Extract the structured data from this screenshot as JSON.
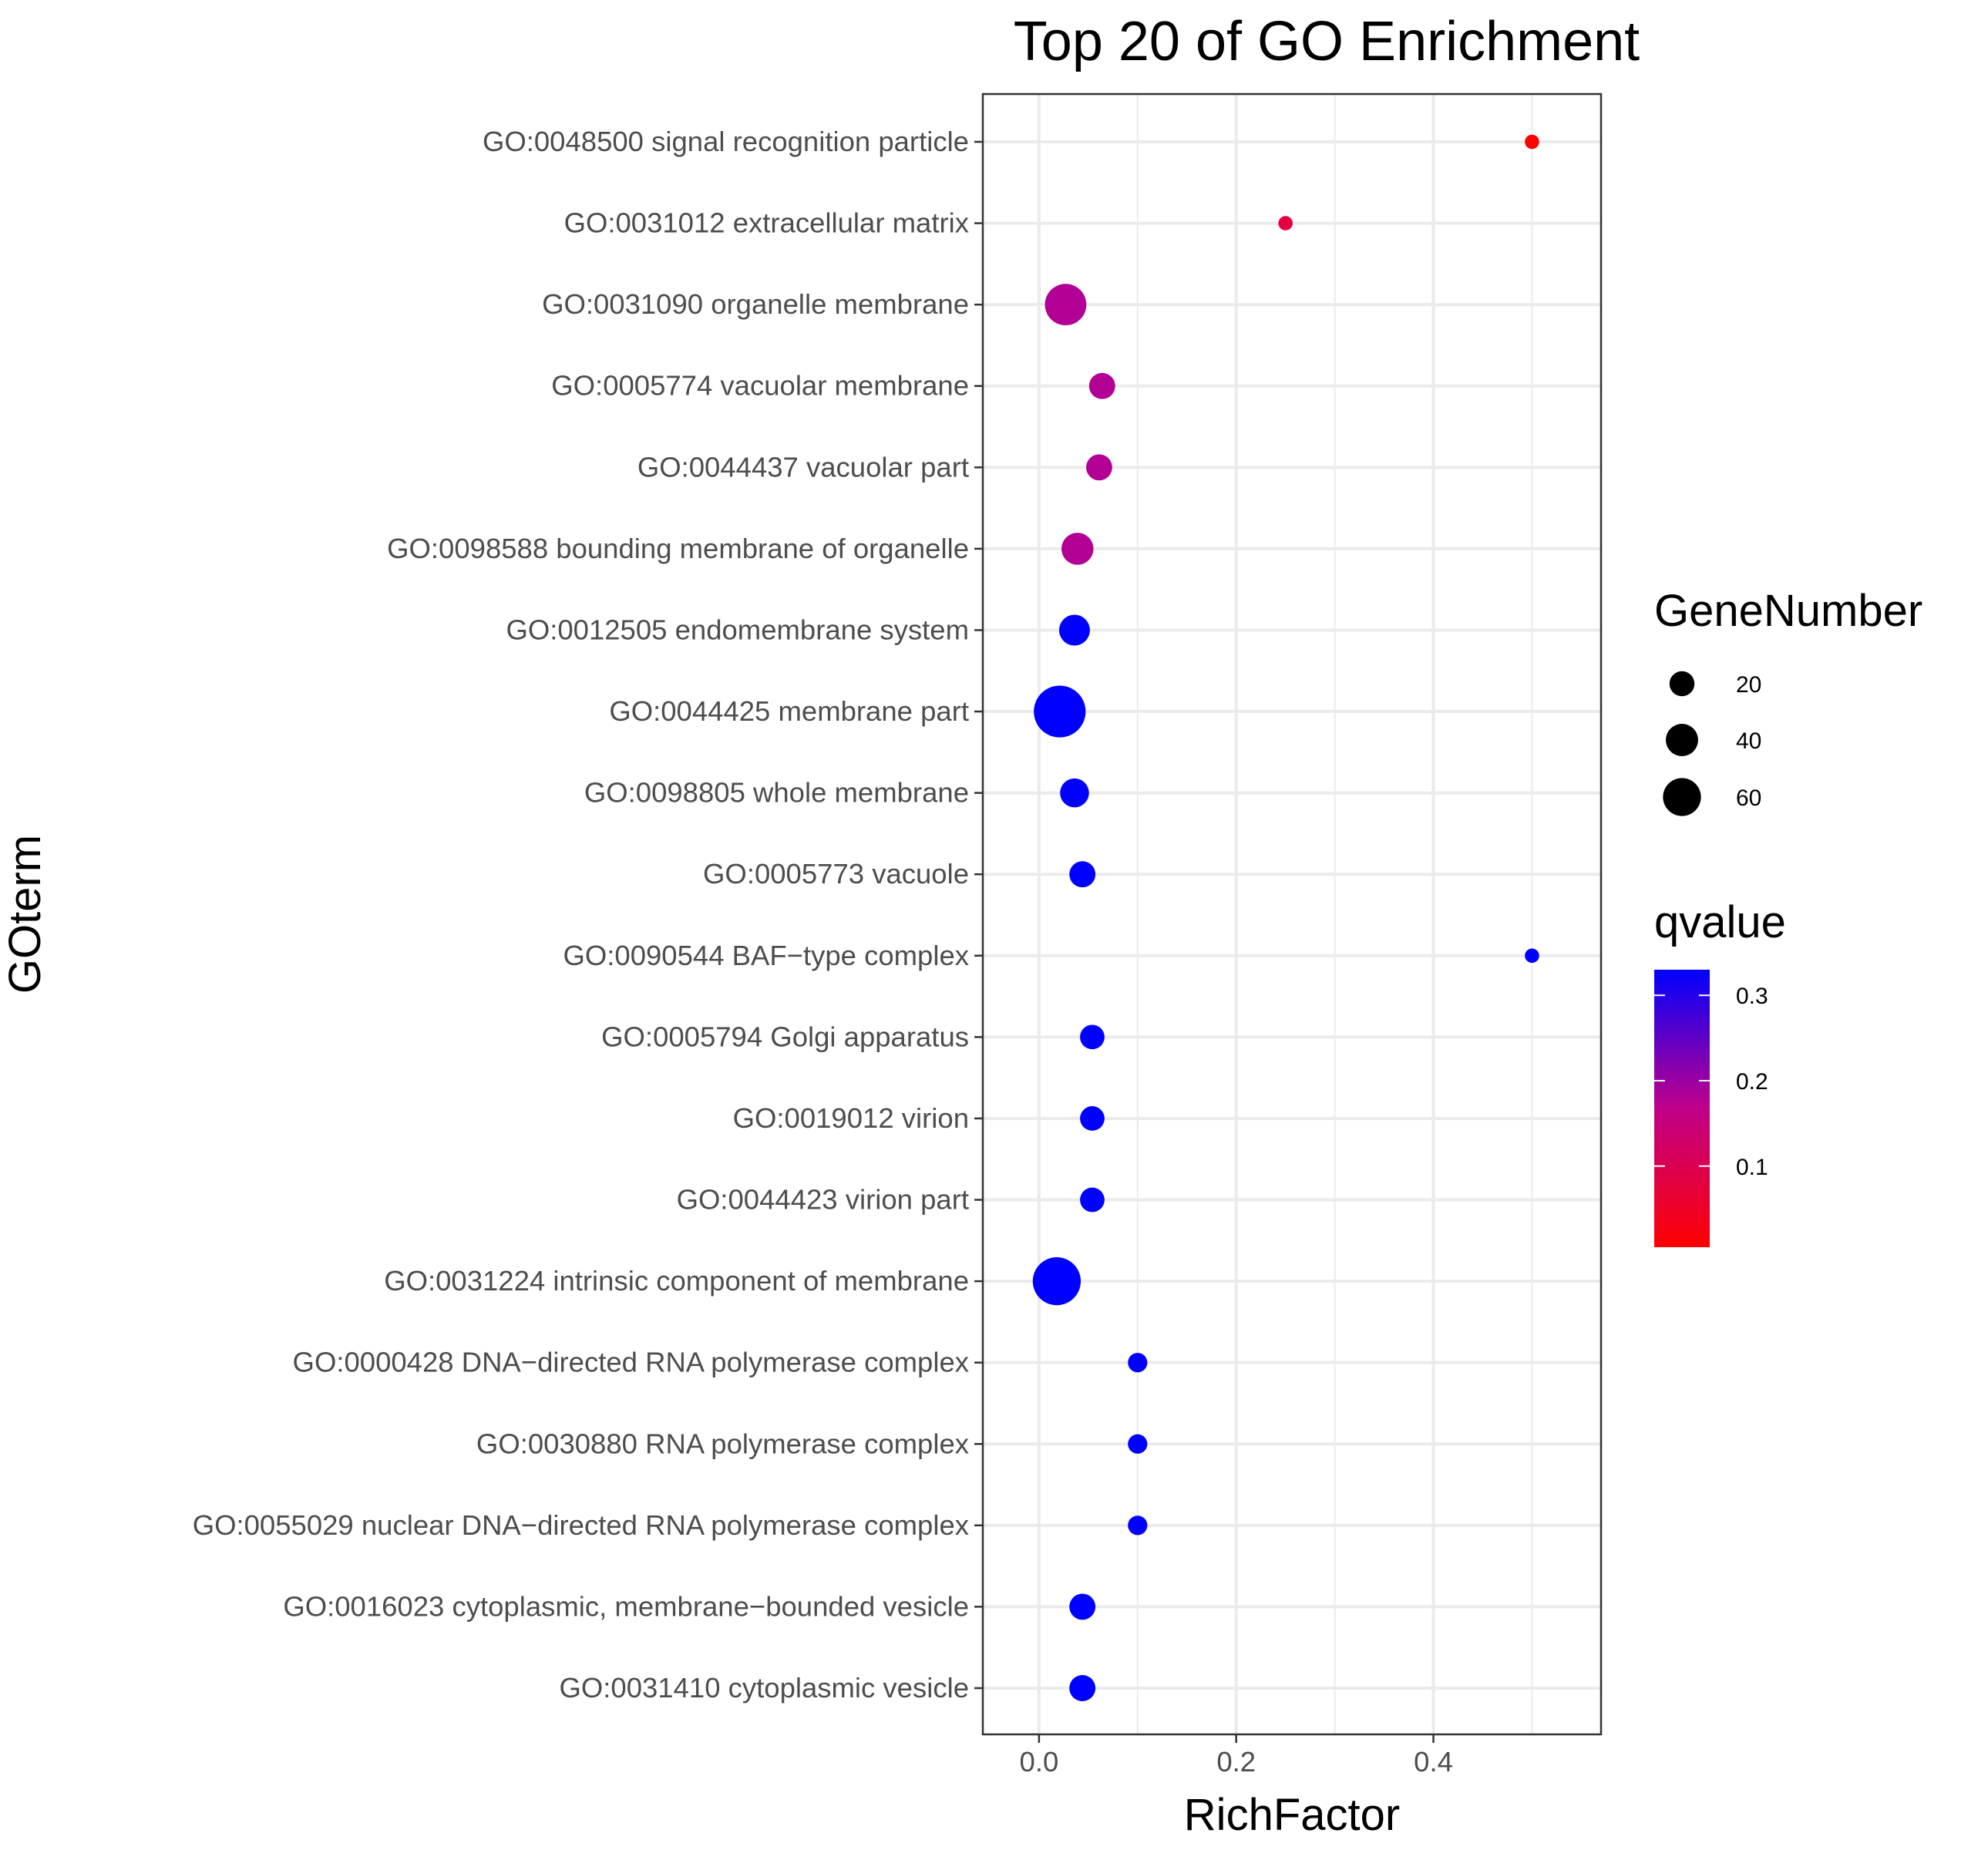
{
  "chart_data": {
    "type": "scatter",
    "title": "Top 20 of GO Enrichment",
    "xlabel": "RichFactor",
    "ylabel": "GOterm",
    "xlim": [
      -0.057,
      0.57
    ],
    "x_ticks": [
      {
        "value": 0.0,
        "label": "0.0"
      },
      {
        "value": 0.2,
        "label": "0.2"
      },
      {
        "value": 0.4,
        "label": "0.4"
      }
    ],
    "x_minor_ticks": [
      0.1,
      0.3,
      0.5
    ],
    "grid": true,
    "legend_position": "right",
    "categories": [
      "GO:0048500 signal recognition particle",
      "GO:0031012 extracellular matrix",
      "GO:0031090 organelle membrane",
      "GO:0005774 vacuolar membrane",
      "GO:0044437 vacuolar part",
      "GO:0098588 bounding membrane of organelle",
      "GO:0012505 endomembrane system",
      "GO:0044425 membrane part",
      "GO:0098805 whole membrane",
      "GO:0005773 vacuole",
      "GO:0090544 BAF−type complex",
      "GO:0005794 Golgi apparatus",
      "GO:0019012 virion",
      "GO:0044423 virion part",
      "GO:0031224 intrinsic component of membrane",
      "GO:0000428 DNA−directed RNA polymerase complex",
      "GO:0030880 RNA polymerase complex",
      "GO:0055029 nuclear DNA−directed RNA polymerase complex",
      "GO:0016023 cytoplasmic, membrane−bounded vesicle",
      "GO:0031410 cytoplasmic vesicle"
    ],
    "points": [
      {
        "term": "GO:0048500 signal recognition particle",
        "rich_factor": 0.5,
        "gene_number": 1,
        "qvalue": 0.005
      },
      {
        "term": "GO:0031012 extracellular matrix",
        "rich_factor": 0.25,
        "gene_number": 1,
        "qvalue": 0.08
      },
      {
        "term": "GO:0031090 organelle membrane",
        "rich_factor": 0.027,
        "gene_number": 40,
        "qvalue": 0.18
      },
      {
        "term": "GO:0005774 vacuolar membrane",
        "rich_factor": 0.064,
        "gene_number": 11,
        "qvalue": 0.18
      },
      {
        "term": "GO:0044437 vacuolar part",
        "rich_factor": 0.061,
        "gene_number": 11,
        "qvalue": 0.18
      },
      {
        "term": "GO:0098588 bounding membrane of organelle",
        "rich_factor": 0.039,
        "gene_number": 20,
        "qvalue": 0.18
      },
      {
        "term": "GO:0012505 endomembrane system",
        "rich_factor": 0.036,
        "gene_number": 18,
        "qvalue": 0.33
      },
      {
        "term": "GO:0044425 membrane part",
        "rich_factor": 0.021,
        "gene_number": 70,
        "qvalue": 0.33
      },
      {
        "term": "GO:0098805 whole membrane",
        "rich_factor": 0.036,
        "gene_number": 15,
        "qvalue": 0.33
      },
      {
        "term": "GO:0005773 vacuole",
        "rich_factor": 0.044,
        "gene_number": 11,
        "qvalue": 0.33
      },
      {
        "term": "GO:0090544 BAF−type complex",
        "rich_factor": 0.5,
        "gene_number": 1,
        "qvalue": 0.33
      },
      {
        "term": "GO:0005794 Golgi apparatus",
        "rich_factor": 0.054,
        "gene_number": 9,
        "qvalue": 0.33
      },
      {
        "term": "GO:0019012 virion",
        "rich_factor": 0.054,
        "gene_number": 9,
        "qvalue": 0.33
      },
      {
        "term": "GO:0044423 virion part",
        "rich_factor": 0.054,
        "gene_number": 9,
        "qvalue": 0.33
      },
      {
        "term": "GO:0031224 intrinsic component of membrane",
        "rich_factor": 0.018,
        "gene_number": 58,
        "qvalue": 0.33
      },
      {
        "term": "GO:0000428 DNA−directed RNA polymerase complex",
        "rich_factor": 0.1,
        "gene_number": 4,
        "qvalue": 0.33
      },
      {
        "term": "GO:0030880 RNA polymerase complex",
        "rich_factor": 0.1,
        "gene_number": 4,
        "qvalue": 0.33
      },
      {
        "term": "GO:0055029 nuclear DNA−directed RNA polymerase complex",
        "rich_factor": 0.1,
        "gene_number": 4,
        "qvalue": 0.33
      },
      {
        "term": "GO:0016023 cytoplasmic, membrane−bounded vesicle",
        "rich_factor": 0.044,
        "gene_number": 11,
        "qvalue": 0.33
      },
      {
        "term": "GO:0031410 cytoplasmic vesicle",
        "rich_factor": 0.044,
        "gene_number": 11,
        "qvalue": 0.33
      }
    ],
    "size_legend": {
      "title": "GeneNumber",
      "entries": [
        {
          "value": 20,
          "label": "20"
        },
        {
          "value": 40,
          "label": "40"
        },
        {
          "value": 60,
          "label": "60"
        }
      ]
    },
    "color_legend": {
      "title": "qvalue",
      "range": [
        0.005,
        0.33
      ],
      "low_color": "#ff0000",
      "high_color": "#0000ff",
      "ticks": [
        {
          "value": 0.1,
          "label": "0.1"
        },
        {
          "value": 0.2,
          "label": "0.2"
        },
        {
          "value": 0.3,
          "label": "0.3"
        }
      ]
    },
    "colors": {
      "background": "#ffffff",
      "grid": "#ebebeb",
      "panel_border": "#333333",
      "tick_text": "#4d4d4d"
    }
  }
}
